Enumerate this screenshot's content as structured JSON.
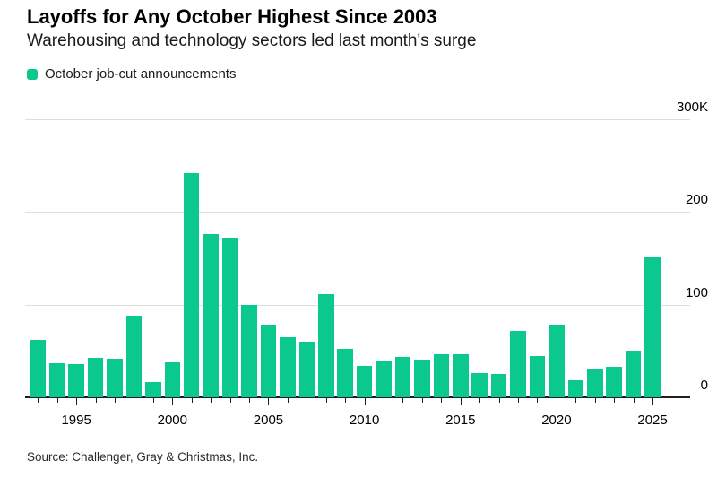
{
  "header": {
    "title": "Layoffs for Any October Highest Since 2003",
    "subtitle": "Warehousing and technology sectors led last month's surge"
  },
  "legend": {
    "label": "October job-cut announcements"
  },
  "source": {
    "text": "Source: Challenger, Gray & Christmas, Inc."
  },
  "colors": {
    "bar": "#0bc88f",
    "grid": "#dedede",
    "axis": "#1f1f1f",
    "text": "#000000"
  },
  "chart_data": {
    "type": "bar",
    "title": "Layoffs for Any October Highest Since 2003",
    "subtitle": "Warehousing and technology sectors led last month's surge",
    "series_name": "October job-cut announcements",
    "unit": "thousands of announced job cuts",
    "x": [
      1993,
      1994,
      1995,
      1996,
      1997,
      1998,
      1999,
      2000,
      2001,
      2002,
      2003,
      2004,
      2005,
      2006,
      2007,
      2008,
      2009,
      2010,
      2011,
      2012,
      2013,
      2014,
      2015,
      2016,
      2017,
      2018,
      2019,
      2020,
      2021,
      2022,
      2023,
      2024,
      2025
    ],
    "values": [
      62,
      37,
      36,
      43,
      42,
      88,
      16,
      38,
      242,
      176,
      172,
      100,
      78,
      65,
      60,
      111,
      52,
      34,
      40,
      44,
      41,
      46,
      46,
      26,
      25,
      72,
      45,
      78,
      18,
      30,
      33,
      50,
      151
    ],
    "ylim": [
      0,
      300
    ],
    "y_ticks": [
      {
        "value": 0,
        "label": "0"
      },
      {
        "value": 100,
        "label": "100"
      },
      {
        "value": 200,
        "label": "200"
      },
      {
        "value": 300,
        "label": "300K"
      }
    ],
    "x_labeled_ticks": [
      1995,
      2000,
      2005,
      2010,
      2015,
      2020,
      2025
    ],
    "grid": true,
    "y_axis_side": "right",
    "legend_position": "top-left"
  }
}
